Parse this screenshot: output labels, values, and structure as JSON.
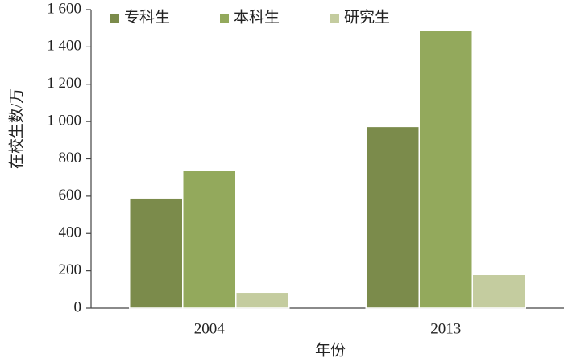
{
  "chart_data": {
    "type": "bar",
    "y_label": "在校生数/万",
    "x_label": "年份",
    "categories": [
      "2004",
      "2013"
    ],
    "series": [
      {
        "name": "专科生",
        "color": "#7b8b4b",
        "values": [
          590,
          973
        ]
      },
      {
        "name": "本科生",
        "color": "#93a95c",
        "values": [
          740,
          1491
        ]
      },
      {
        "name": "研究生",
        "color": "#c4cc9f",
        "values": [
          85,
          180
        ]
      }
    ],
    "ylim": [
      0,
      1600
    ],
    "yticks": [
      0,
      200,
      400,
      600,
      800,
      {
        "value": 1000,
        "label": "1 000"
      },
      {
        "value": 1200,
        "label": "1 200"
      },
      {
        "value": 1400,
        "label": "1 400"
      },
      {
        "value": 1600,
        "label": "1 600"
      }
    ],
    "legend": "top"
  }
}
